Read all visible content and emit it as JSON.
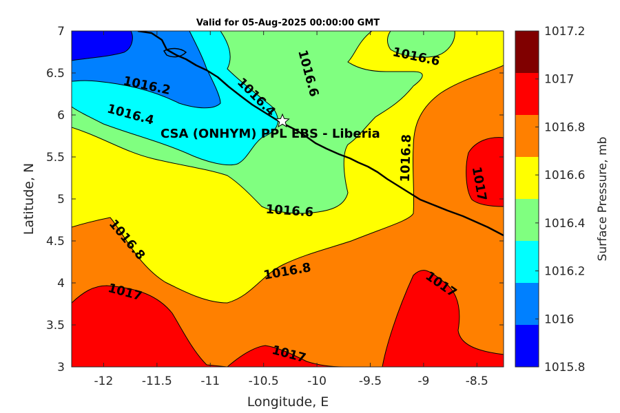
{
  "title": "Valid for 05-Aug-2025 00:00:00 GMT",
  "x_axis": {
    "label": "Longitude, E",
    "ticks": [
      "-12",
      "-11.5",
      "-11",
      "-10.5",
      "-10",
      "-9.5",
      "-9",
      "-8.5"
    ]
  },
  "y_axis": {
    "label": "Latitude, N",
    "ticks": [
      "3",
      "3.5",
      "4",
      "4.5",
      "5",
      "5.5",
      "6",
      "6.5",
      "7"
    ]
  },
  "colorbar": {
    "label": "Surface Pressure, mb",
    "ticks": [
      "1015.8",
      "1016",
      "1016.2",
      "1016.4",
      "1016.6",
      "1016.8",
      "1017",
      "1017.2"
    ],
    "colors": [
      "#0000ff",
      "#0080ff",
      "#00ffff",
      "#80ff80",
      "#ffff00",
      "#ff8000",
      "#ff0000",
      "#800000"
    ]
  },
  "map": {
    "site_label": "CSA (ONHYM) PPL EBS  - Liberia",
    "site_marker": "star-icon",
    "contour_labels": [
      "1016.2",
      "1016.4",
      "1016.4",
      "1016.6",
      "1016.6",
      "1016.6",
      "1016.8",
      "1016.8",
      "1016.8",
      "1017",
      "1017",
      "1017",
      "1017"
    ]
  }
}
